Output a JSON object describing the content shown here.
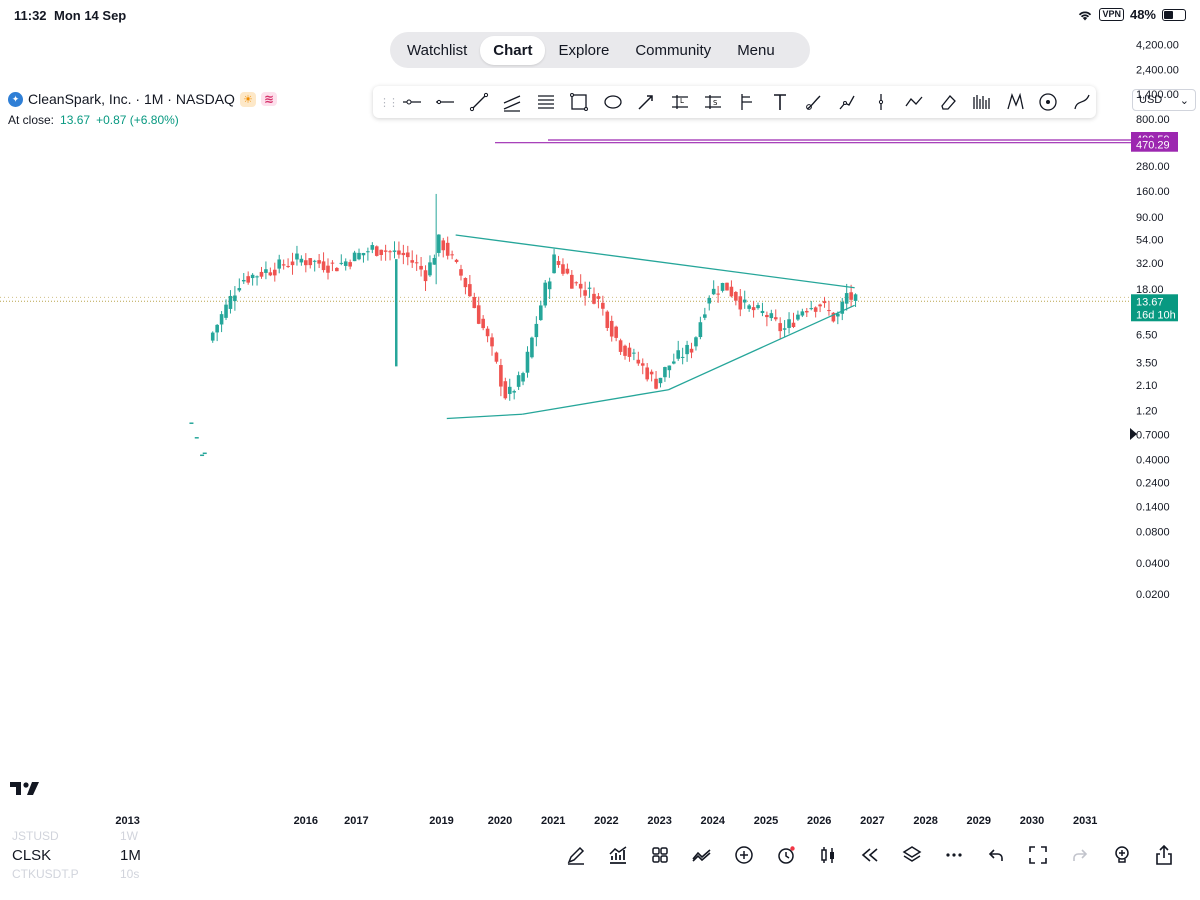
{
  "status_bar": {
    "time": "11:32",
    "date": "Mon 14 Sep",
    "vpn": "VPN",
    "battery": "48%"
  },
  "nav_tabs": [
    {
      "label": "Watchlist",
      "active": false
    },
    {
      "label": "Chart",
      "active": true
    },
    {
      "label": "Explore",
      "active": false
    },
    {
      "label": "Community",
      "active": false
    },
    {
      "label": "Menu",
      "active": false
    }
  ],
  "symbol": {
    "title": "CleanSpark, Inc. · 1M · NASDAQ",
    "close_label": "At close:",
    "close_price": "13.67",
    "close_change": "+0.87 (+6.80%)"
  },
  "currency": "USD",
  "drawing_tools": [
    "horizontal-ray-icon",
    "horizontal-line-icon",
    "trend-line-icon",
    "parallel-channel-icon",
    "fib-retracement-icon",
    "rectangle-icon",
    "ellipse-icon",
    "arrow-icon",
    "long-position-icon",
    "short-position-icon",
    "pitchfork-icon",
    "text-icon",
    "brush-icon",
    "path-icon",
    "vertical-line-icon",
    "polyline-icon",
    "eraser-icon",
    "volume-profile-icon",
    "pattern-icon",
    "circle-icon",
    "curve-icon"
  ],
  "chart_data": {
    "type": "candlestick",
    "scale": "log",
    "x_ticks": [
      "2013",
      "2016",
      "2017",
      "2019",
      "2020",
      "2021",
      "2022",
      "2023",
      "2024",
      "2025",
      "2026",
      "2027",
      "2028",
      "2029",
      "2030",
      "2031"
    ],
    "y_ticks": [
      "4,200.00",
      "2,400.00",
      "1,400.00",
      "800.00",
      "280.00",
      "160.00",
      "90.00",
      "54.00",
      "32.00",
      "18.00",
      "6.50",
      "3.50",
      "2.10",
      "1.20",
      "0.7000",
      "0.4000",
      "0.2400",
      "0.1400",
      "0.0800",
      "0.0400",
      "0.0200"
    ],
    "price_labels": [
      {
        "text": "499.59",
        "value": 499.59,
        "color": "#9c27b0"
      },
      {
        "text": "470.29",
        "value": 470.29,
        "color": "#9c27b0"
      },
      {
        "text": "13.67",
        "value": 13.67,
        "color": "#089981"
      },
      {
        "text": "16d 10h",
        "value": 13.67,
        "color": "#089981"
      }
    ],
    "last_price": 13.67,
    "horizontal_lines": [
      {
        "value": 499.59,
        "color": "#9c27b0"
      },
      {
        "value": 470.29,
        "color": "#9c27b0"
      }
    ],
    "trendlines": [
      {
        "from": {
          "date": "2019-03",
          "price": 60
        },
        "to": {
          "date": "2026-09",
          "price": 18.5
        },
        "color": "#26a69a"
      },
      {
        "from": {
          "date": "2019-01",
          "price": 1.0
        },
        "to": {
          "date": "2020-06",
          "price": 1.1
        },
        "color": "#26a69a"
      },
      {
        "from": {
          "date": "2020-06",
          "price": 1.1
        },
        "to": {
          "date": "2023-03",
          "price": 1.9
        },
        "color": "#26a69a"
      },
      {
        "from": {
          "date": "2023-03",
          "price": 1.9
        },
        "to": {
          "date": "2026-09",
          "price": 12.5
        },
        "color": "#26a69a"
      }
    ],
    "colors": {
      "up": "#26a69a",
      "down": "#ef5350",
      "price_line": "#b8a34a"
    }
  },
  "bottom_bar": {
    "symbol_above": "JSTUSD",
    "interval_above": "1W",
    "symbol": "CLSK",
    "interval": "1M",
    "symbol_below": "CTKUSDT.P",
    "interval_below": "10s"
  }
}
